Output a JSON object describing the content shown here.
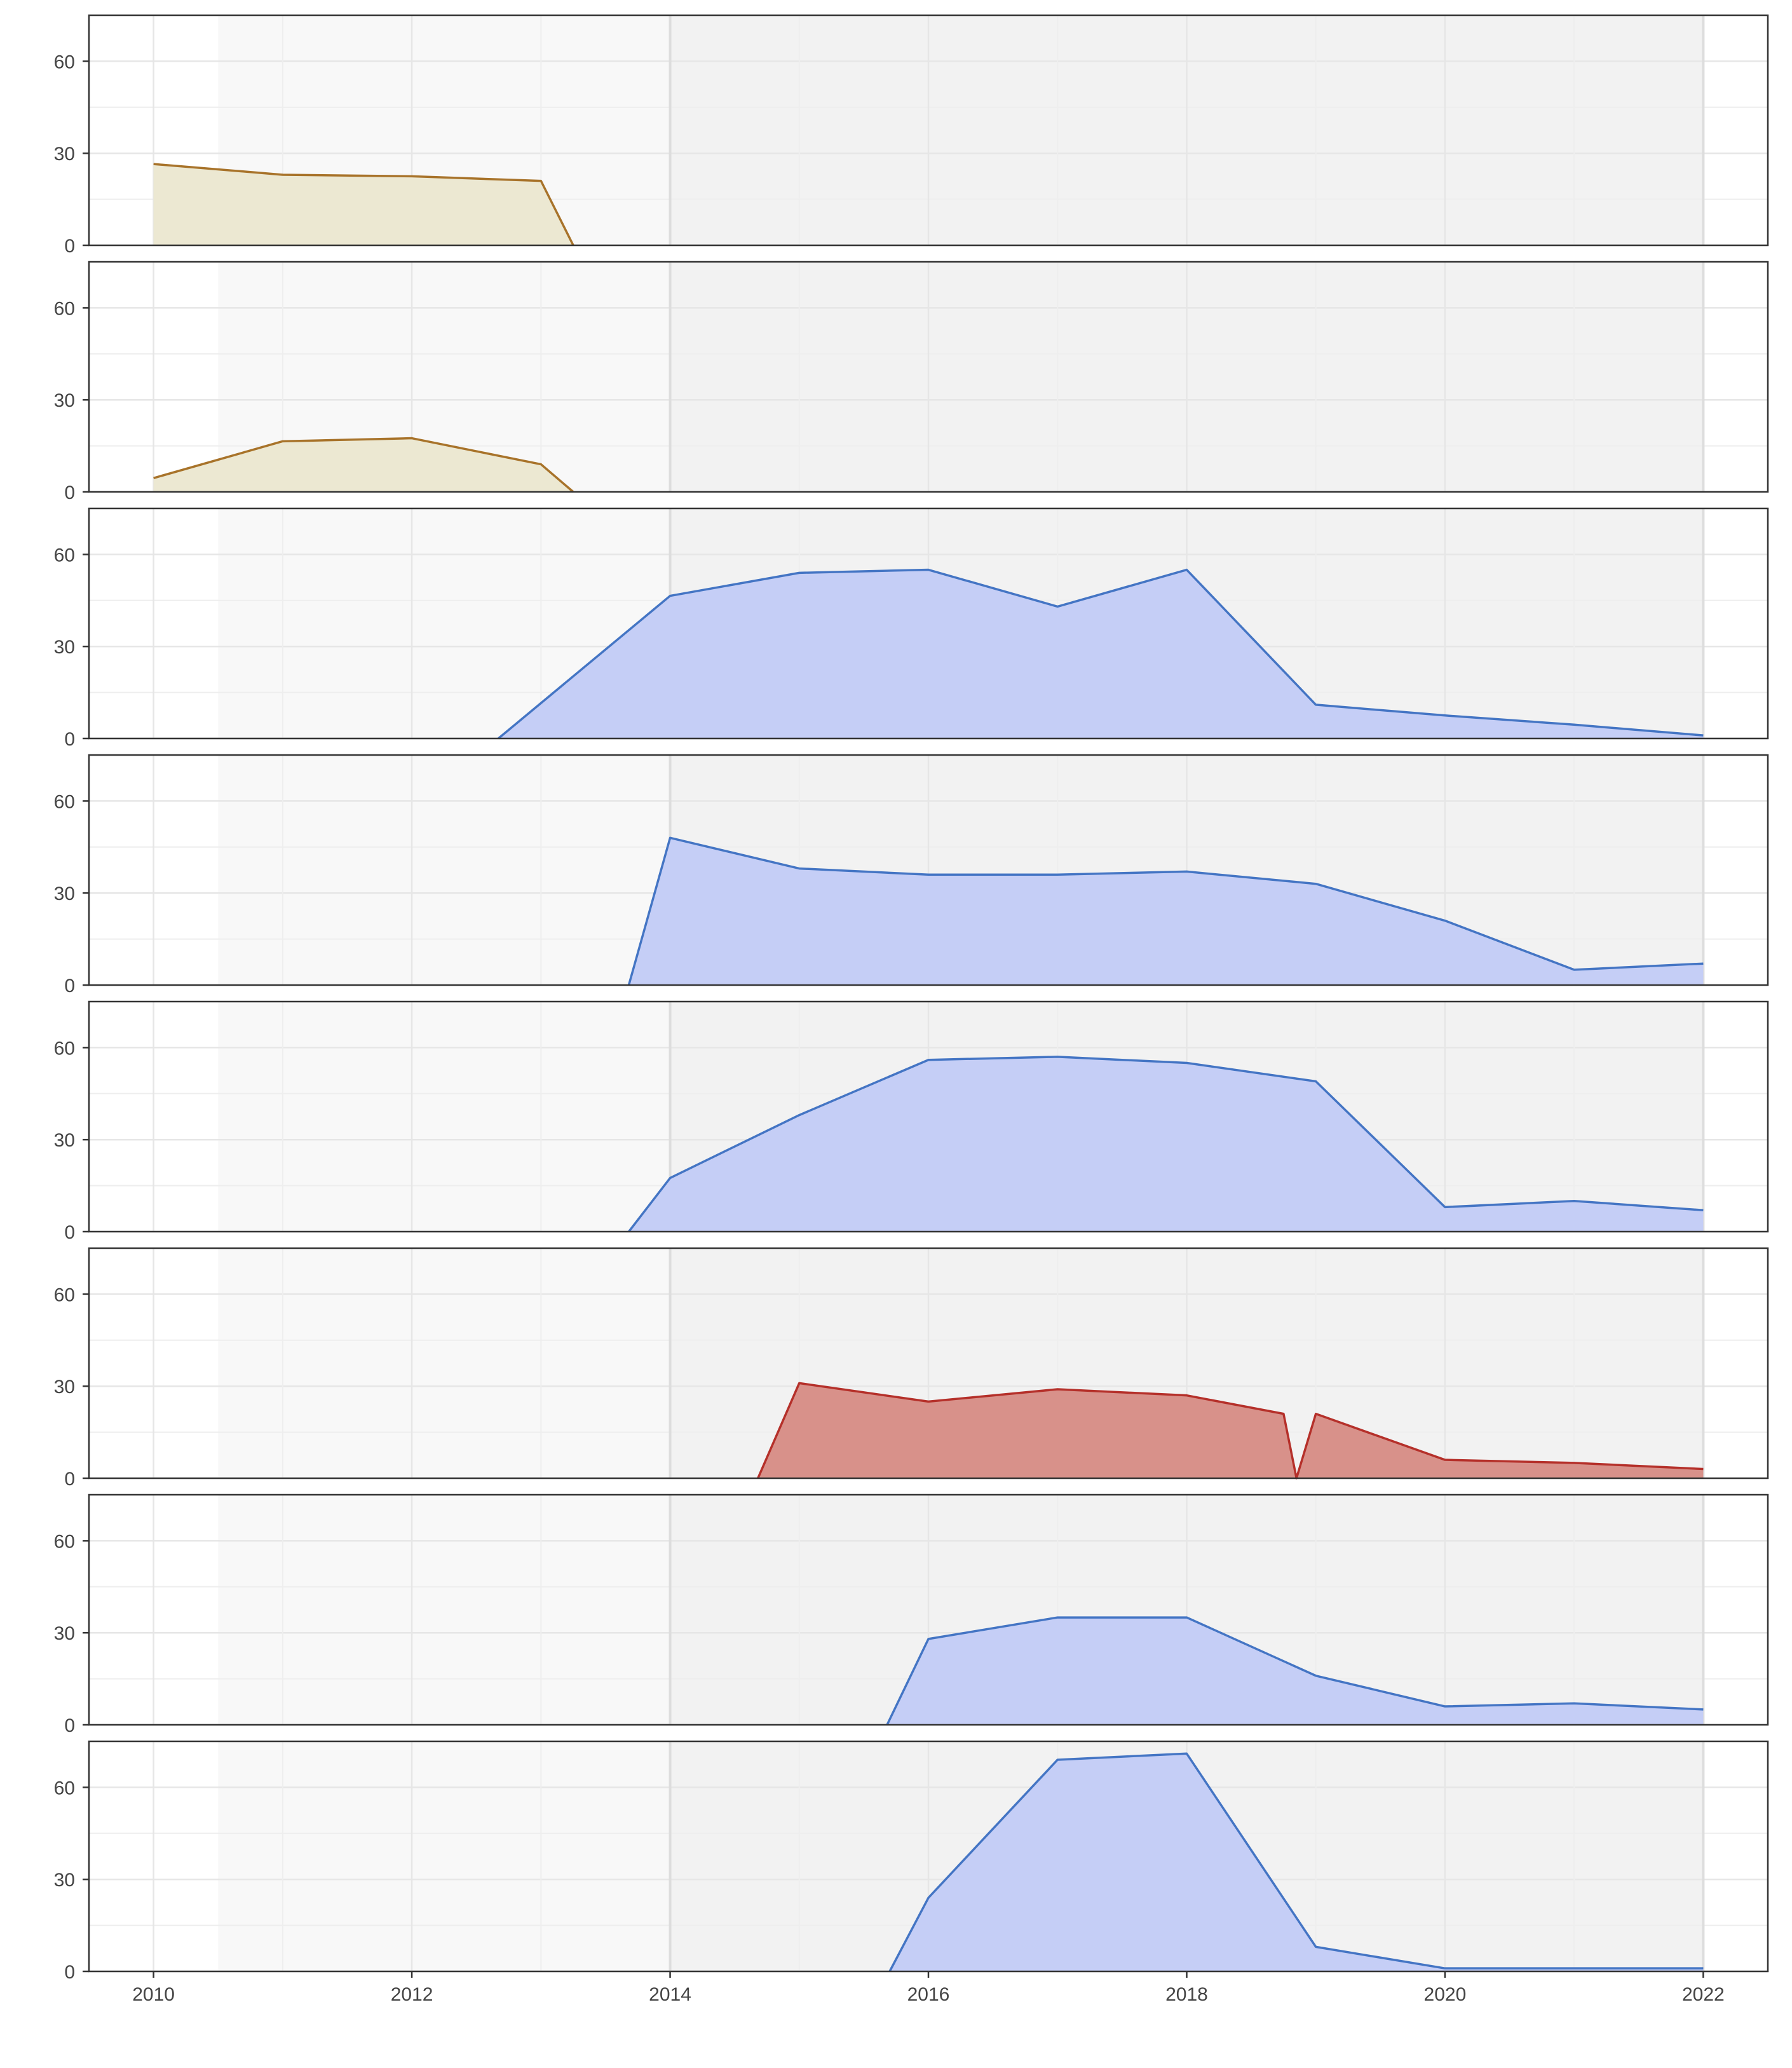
{
  "chart_data": {
    "type": "area",
    "layout": "small-multiples",
    "x_ticks": [
      2010,
      2012,
      2014,
      2016,
      2018,
      2020,
      2022
    ],
    "y_ticks": [
      0,
      30,
      60
    ],
    "xlim": [
      2009.5,
      2022.5
    ],
    "ylim": [
      0,
      75
    ],
    "grid": true,
    "colors": {
      "tan": {
        "line": "#A8732A",
        "fill": "#ECE8D2"
      },
      "blue": {
        "line": "#4475C4",
        "fill": "#C5CEF6"
      },
      "red": {
        "line": "#B5302A",
        "fill": "#D8918A"
      },
      "panel_bg": "#F7F7F7",
      "gridline": "#E6E6E6",
      "border": "#333333"
    },
    "panels": [
      {
        "color": "tan",
        "x": [
          2010,
          2011,
          2012,
          2013,
          2013.25
        ],
        "y": [
          26.5,
          23,
          22.5,
          21,
          0
        ]
      },
      {
        "color": "tan",
        "x": [
          2010,
          2011,
          2012,
          2013,
          2013.25
        ],
        "y": [
          4.5,
          16.5,
          17.5,
          9,
          0
        ]
      },
      {
        "color": "blue",
        "x": [
          2012.67,
          2014,
          2015,
          2016,
          2017,
          2018,
          2019,
          2020,
          2021,
          2022
        ],
        "y": [
          0,
          46.5,
          54,
          55,
          43,
          55,
          11,
          7.5,
          4.5,
          1
        ]
      },
      {
        "color": "blue",
        "x": [
          2013.68,
          2014,
          2015,
          2016,
          2017,
          2018,
          2019,
          2020,
          2021,
          2022
        ],
        "y": [
          0,
          48,
          38,
          36,
          36,
          37,
          33,
          21,
          5,
          7
        ]
      },
      {
        "color": "blue",
        "x": [
          2013.68,
          2014,
          2015,
          2016,
          2017,
          2018,
          2019,
          2020,
          2021,
          2022
        ],
        "y": [
          0,
          17.5,
          38,
          56,
          57,
          55,
          49,
          8,
          10,
          7
        ]
      },
      {
        "color": "red",
        "x": [
          2014.68,
          2015,
          2016,
          2017,
          2018,
          2018.75,
          2018.85,
          2019,
          2020,
          2021,
          2022
        ],
        "y": [
          0,
          31,
          25,
          29,
          27,
          21,
          0,
          21,
          6,
          5,
          3
        ]
      },
      {
        "color": "blue",
        "x": [
          2015.68,
          2016,
          2017,
          2018,
          2019,
          2020,
          2021,
          2022
        ],
        "y": [
          0,
          28,
          35,
          35,
          16,
          6,
          7,
          5
        ]
      },
      {
        "color": "blue",
        "x": [
          2015.7,
          2016,
          2017,
          2018,
          2019,
          2020,
          2021,
          2022
        ],
        "y": [
          0,
          24,
          69,
          71,
          8,
          1,
          1,
          1
        ]
      }
    ]
  }
}
